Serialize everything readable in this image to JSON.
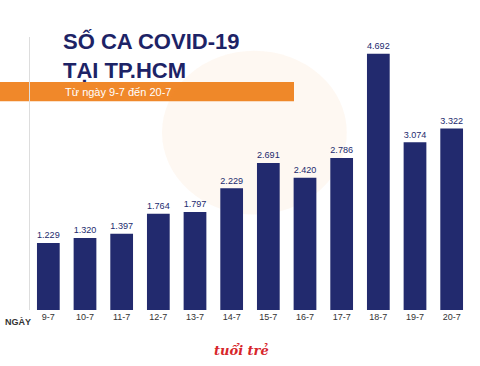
{
  "chart_data": {
    "type": "bar",
    "title": "SỐ CA COVID-19\nTẠI TP.HCM",
    "subtitle": "Từ ngày 9-7 đến 20-7",
    "xlabel": "NGÀY",
    "source": "tuổi trẻ",
    "categories": [
      "9-7",
      "10-7",
      "11-7",
      "12-7",
      "13-7",
      "14-7",
      "15-7",
      "16-7",
      "17-7",
      "18-7",
      "19-7",
      "20-7"
    ],
    "values": [
      1229,
      1320,
      1397,
      1764,
      1797,
      2229,
      2691,
      2420,
      2786,
      4692,
      3074,
      3322
    ],
    "value_labels": [
      "1.229",
      "1.320",
      "1.397",
      "1.764",
      "1.797",
      "2.229",
      "2.691",
      "2.420",
      "2.786",
      "4.692",
      "3.074",
      "3.322"
    ],
    "color": "#222a6e",
    "ylim": [
      0,
      5000
    ],
    "yticks": [],
    "data_labels": true,
    "tick_labels": "x",
    "grid": false
  }
}
